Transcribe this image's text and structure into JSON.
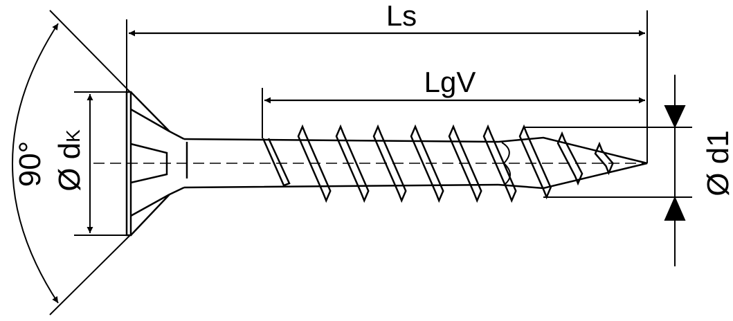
{
  "labels": {
    "ls": "Ls",
    "lgv": "LgV",
    "angle": "90°",
    "head_diameter": "Ø d",
    "head_diameter_sub": "K",
    "thread_diameter": "Ø d1"
  },
  "colors": {
    "line": "#000000",
    "background": "#ffffff"
  }
}
